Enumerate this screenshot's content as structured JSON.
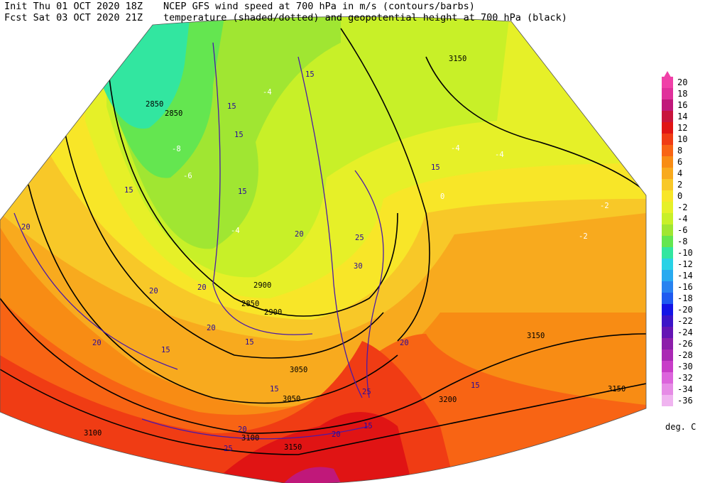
{
  "header": {
    "init": "Init  Thu 01 OCT 2020 18Z",
    "fcst": "Fcst Sat 03 OCT 2020 21Z",
    "title_1": "NCEP GFS wind speed at 700 hPa in m/s (contours/barbs)",
    "title_2": "temperature (shaded/dotted) and geopotential height at 700 hPa (black)"
  },
  "legend": {
    "unit": "deg. C",
    "levels": [
      {
        "label": "20",
        "color": "#f040a8"
      },
      {
        "label": "18",
        "color": "#e0309b"
      },
      {
        "label": "16",
        "color": "#c0187a"
      },
      {
        "label": "14",
        "color": "#c8143c"
      },
      {
        "label": "12",
        "color": "#e01414"
      },
      {
        "label": "10",
        "color": "#f03c14"
      },
      {
        "label": "8",
        "color": "#f86414"
      },
      {
        "label": "6",
        "color": "#f88c14"
      },
      {
        "label": "4",
        "color": "#f8aa1e"
      },
      {
        "label": "2",
        "color": "#f8c828"
      },
      {
        "label": "0",
        "color": "#f8e628"
      },
      {
        "label": "-2",
        "color": "#e6f028"
      },
      {
        "label": "-4",
        "color": "#c8f028"
      },
      {
        "label": "-6",
        "color": "#a0e632"
      },
      {
        "label": "-8",
        "color": "#64e650"
      },
      {
        "label": "-10",
        "color": "#32e6a0"
      },
      {
        "label": "-12",
        "color": "#28d2e6"
      },
      {
        "label": "-14",
        "color": "#28aaf0"
      },
      {
        "label": "-16",
        "color": "#2882f0"
      },
      {
        "label": "-18",
        "color": "#1e5af0"
      },
      {
        "label": "-20",
        "color": "#1414e6"
      },
      {
        "label": "-22",
        "color": "#3c14c8"
      },
      {
        "label": "-24",
        "color": "#6414b4"
      },
      {
        "label": "-26",
        "color": "#8c1eaa"
      },
      {
        "label": "-28",
        "color": "#aa28b4"
      },
      {
        "label": "-30",
        "color": "#c83cc8"
      },
      {
        "label": "-32",
        "color": "#dc64dc"
      },
      {
        "label": "-34",
        "color": "#e68ce6"
      },
      {
        "label": "-36",
        "color": "#f0b4f0"
      }
    ]
  },
  "map": {
    "height_labels": [
      "2850",
      "2850",
      "3150",
      "2900",
      "2850",
      "2900",
      "3050",
      "3050",
      "3100",
      "3100",
      "3150",
      "3150",
      "3200",
      "3150"
    ],
    "wind_labels": [
      "15",
      "15",
      "15",
      "15",
      "15",
      "20",
      "20",
      "25",
      "30",
      "20",
      "20",
      "20",
      "15",
      "15",
      "20",
      "20",
      "15",
      "25",
      "20",
      "20",
      "25",
      "15",
      "15",
      "15"
    ],
    "temp_labels": [
      "-4",
      "-8",
      "-6",
      "-4",
      "-2",
      "-2",
      "-4",
      "-4",
      "0"
    ]
  }
}
